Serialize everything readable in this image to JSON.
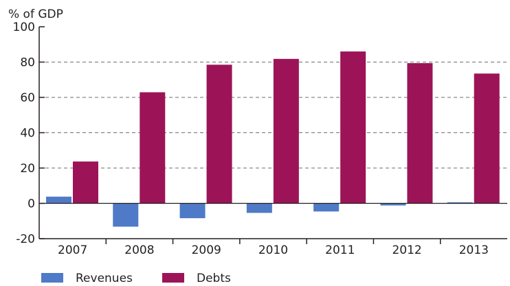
{
  "chart_data": {
    "type": "bar",
    "ylabel": "% of GDP",
    "categories": [
      "2007",
      "2008",
      "2009",
      "2010",
      "2011",
      "2012",
      "2013"
    ],
    "series": [
      {
        "name": "Revenues",
        "color": "#4f7ac7",
        "values": [
          3.8,
          -13.2,
          -8.4,
          -5.4,
          -4.6,
          -1.2,
          0.6
        ]
      },
      {
        "name": "Debts",
        "color": "#9c1457",
        "values": [
          23.7,
          62.9,
          78.5,
          81.8,
          86.0,
          79.4,
          73.5
        ]
      }
    ],
    "ylim": [
      -20,
      100
    ],
    "yticks": [
      100,
      80,
      60,
      40,
      20,
      0,
      -20
    ],
    "grid": "horizontal-dashed",
    "legend_position": "bottom-left"
  }
}
